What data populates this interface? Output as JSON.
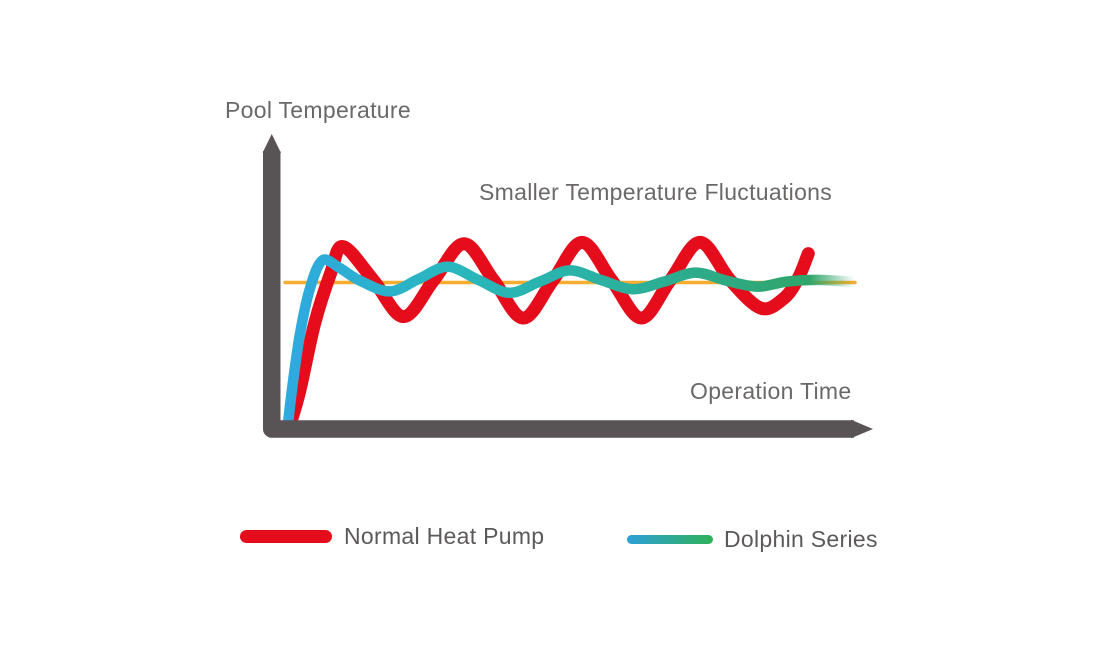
{
  "chart_data": {
    "type": "line",
    "title": "",
    "ylabel": "Pool Temperature",
    "xlabel": "Operation Time",
    "annotation": "Smaller Temperature Fluctuations",
    "xlim": [
      0,
      100
    ],
    "ylim": [
      0,
      100
    ],
    "grid": false,
    "legend_position": "bottom",
    "axis_color": "#585455",
    "setpoint_line": {
      "y": 52.7,
      "color": "#f8ad2e",
      "width": 3.5
    },
    "series": [
      {
        "name": "Normal Heat Pump",
        "color": "#e50d1c",
        "stroke_width": 13,
        "points": [
          [
            0.9,
            2
          ],
          [
            2.6,
            14
          ],
          [
            5.2,
            38
          ],
          [
            8,
            56
          ],
          [
            10.2,
            65.5
          ],
          [
            15.5,
            53.5
          ],
          [
            20.8,
            40.5
          ],
          [
            26.1,
            53.5
          ],
          [
            31.4,
            66.5
          ],
          [
            36.6,
            53.5
          ],
          [
            41.8,
            40
          ],
          [
            47,
            53.5
          ],
          [
            52.1,
            67
          ],
          [
            57.3,
            53.5
          ],
          [
            62.5,
            40
          ],
          [
            67.6,
            53.5
          ],
          [
            72.8,
            67
          ],
          [
            78.1,
            53.5
          ],
          [
            83.5,
            43.5
          ],
          [
            87.5,
            47
          ],
          [
            90,
            54
          ],
          [
            91.8,
            63
          ]
        ]
      },
      {
        "name": "Dolphin Series",
        "gradient": [
          {
            "offset": 0,
            "color": "#2fa9e0"
          },
          {
            "offset": 0.28,
            "color": "#29b6bf"
          },
          {
            "offset": 0.55,
            "color": "#2bb2a4"
          },
          {
            "offset": 0.78,
            "color": "#2ea981"
          },
          {
            "offset": 0.92,
            "color": "#30a569"
          }
        ],
        "fade_tail": true,
        "stroke_width": 10.5,
        "points": [
          [
            0.4,
            0
          ],
          [
            1.2,
            14
          ],
          [
            2.6,
            34
          ],
          [
            4.3,
            50
          ],
          [
            6.5,
            60.5
          ],
          [
            9.5,
            58
          ],
          [
            13,
            53.5
          ],
          [
            18.4,
            49.5
          ],
          [
            23.5,
            54
          ],
          [
            28.6,
            58.3
          ],
          [
            34,
            53.5
          ],
          [
            39.4,
            49
          ],
          [
            44.7,
            53
          ],
          [
            50,
            57
          ],
          [
            55.5,
            53.5
          ],
          [
            61,
            50.3
          ],
          [
            66.5,
            53
          ],
          [
            72,
            56.2
          ],
          [
            77.5,
            53.3
          ],
          [
            83,
            51.2
          ],
          [
            88,
            53
          ],
          [
            93.5,
            53.6
          ],
          [
            99.6,
            52.9
          ]
        ]
      }
    ],
    "legend": [
      {
        "label": "Normal Heat Pump",
        "swatch": "solid",
        "color": "#e50d1c"
      },
      {
        "label": "Dolphin Series",
        "swatch": "gradient",
        "colors": [
          "#2d9fd8",
          "#2fb257"
        ]
      }
    ]
  }
}
